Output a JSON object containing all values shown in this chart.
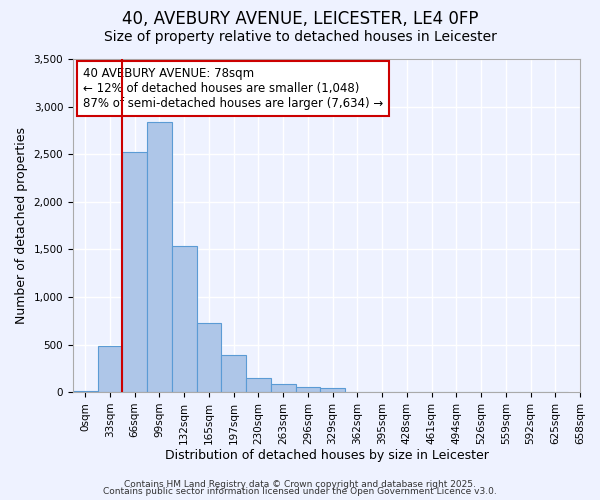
{
  "title": "40, AVEBURY AVENUE, LEICESTER, LE4 0FP",
  "subtitle": "Size of property relative to detached houses in Leicester",
  "xlabel": "Distribution of detached houses by size in Leicester",
  "ylabel": "Number of detached properties",
  "bar_values": [
    10,
    480,
    2520,
    2840,
    1530,
    730,
    390,
    150,
    80,
    50,
    40,
    5,
    0,
    0,
    0,
    0,
    0,
    0,
    0,
    0
  ],
  "bin_labels": [
    "0sqm",
    "33sqm",
    "66sqm",
    "99sqm",
    "132sqm",
    "165sqm",
    "197sqm",
    "230sqm",
    "263sqm",
    "296sqm",
    "329sqm",
    "362sqm",
    "395sqm",
    "428sqm",
    "461sqm",
    "494sqm",
    "526sqm",
    "559sqm",
    "592sqm",
    "625sqm"
  ],
  "last_label": "658sqm",
  "bar_color": "#aec6e8",
  "bar_edge_color": "#5b9bd5",
  "background_color": "#eef2ff",
  "grid_color": "#ffffff",
  "vline_x": 1.5,
  "vline_color": "#cc0000",
  "annotation_text": "40 AVEBURY AVENUE: 78sqm\n← 12% of detached houses are smaller (1,048)\n87% of semi-detached houses are larger (7,634) →",
  "annotation_box_color": "#ffffff",
  "annotation_box_edge": "#cc0000",
  "ylim": [
    0,
    3500
  ],
  "yticks": [
    0,
    500,
    1000,
    1500,
    2000,
    2500,
    3000,
    3500
  ],
  "footnote1": "Contains HM Land Registry data © Crown copyright and database right 2025.",
  "footnote2": "Contains public sector information licensed under the Open Government Licence v3.0.",
  "title_fontsize": 12,
  "subtitle_fontsize": 10,
  "xlabel_fontsize": 9,
  "ylabel_fontsize": 9,
  "tick_fontsize": 7.5,
  "annotation_fontsize": 8.5,
  "footnote_fontsize": 6.5
}
